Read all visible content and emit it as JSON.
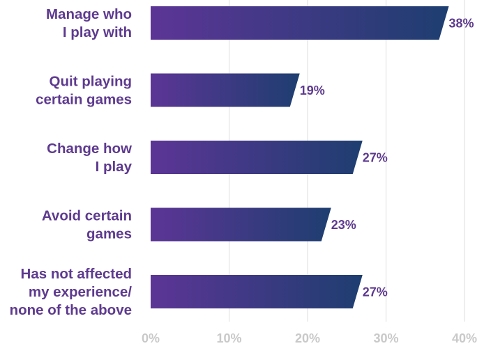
{
  "chart_data": {
    "type": "bar",
    "orientation": "horizontal",
    "title": "",
    "xlabel": "",
    "ylabel": "",
    "categories": [
      [
        "Manage who",
        "I play with"
      ],
      [
        "Quit playing",
        "certain games"
      ],
      [
        "Change how",
        "I play"
      ],
      [
        "Avoid certain",
        "games"
      ],
      [
        "Has not affected",
        "my experience/",
        "none of the above"
      ]
    ],
    "values": [
      38,
      19,
      27,
      23,
      27
    ],
    "value_labels": [
      "38%",
      "19%",
      "27%",
      "23%",
      "27%"
    ],
    "xlim": [
      0,
      40
    ],
    "x_ticks": [
      0,
      10,
      20,
      30,
      40
    ],
    "x_tick_labels": [
      "0%",
      "10%",
      "20%",
      "30%",
      "40%"
    ],
    "grid": "vertical",
    "legend": "none"
  },
  "colors": {
    "bar_start": "#5c3596",
    "bar_end": "#1e3e70",
    "category_text": "#5e3a8f",
    "value_text": "#5e3a8f",
    "tick_text": "#c9c9c9",
    "grid": "#dddddd"
  }
}
